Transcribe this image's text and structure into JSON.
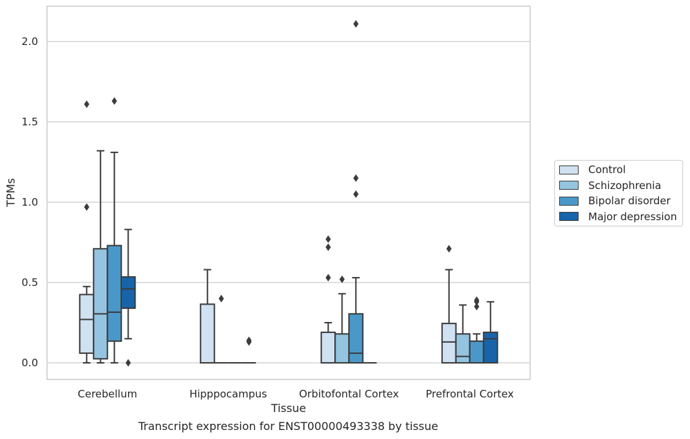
{
  "chart_data": {
    "type": "box",
    "ylabel": "TPMs",
    "xlabel": "Tissue",
    "caption": "Transcript expression for ENST00000493338 by tissue",
    "ylim": [
      -0.1,
      2.22
    ],
    "yticks": [
      0.0,
      0.5,
      1.0,
      1.5,
      2.0
    ],
    "ytick_labels": [
      "0.0",
      "0.5",
      "1.0",
      "1.5",
      "2.0"
    ],
    "grid": "horizontal",
    "legend_position": "right",
    "categories": [
      "Cerebellum",
      "Hipppocampus",
      "Orbitofontal Cortex",
      "Prefrontal Cortex"
    ],
    "series": [
      {
        "name": "Control",
        "color": "#d0e1f2",
        "boxes": [
          {
            "q1": 0.06,
            "median": 0.27,
            "q3": 0.425,
            "whisker_low": 0.0,
            "whisker_high": 0.475,
            "outliers": [
              0.97,
              1.61
            ]
          },
          {
            "q1": 0.0,
            "median": 0.0,
            "q3": 0.365,
            "whisker_low": 0.0,
            "whisker_high": 0.58,
            "outliers": []
          },
          {
            "q1": 0.0,
            "median": 0.0,
            "q3": 0.19,
            "whisker_low": 0.0,
            "whisker_high": 0.25,
            "outliers": [
              0.53,
              0.72,
              0.77
            ]
          },
          {
            "q1": 0.0,
            "median": 0.13,
            "q3": 0.245,
            "whisker_low": 0.0,
            "whisker_high": 0.58,
            "outliers": [
              0.71
            ]
          }
        ]
      },
      {
        "name": "Schizophrenia",
        "color": "#94c4df",
        "boxes": [
          {
            "q1": 0.025,
            "median": 0.305,
            "q3": 0.71,
            "whisker_low": 0.0,
            "whisker_high": 1.32,
            "outliers": []
          },
          {
            "q1": 0.0,
            "median": 0.0,
            "q3": 0.0,
            "whisker_low": 0.0,
            "whisker_high": 0.0,
            "outliers": [
              0.4
            ]
          },
          {
            "q1": 0.0,
            "median": 0.0,
            "q3": 0.18,
            "whisker_low": 0.0,
            "whisker_high": 0.43,
            "outliers": [
              0.52
            ]
          },
          {
            "q1": 0.0,
            "median": 0.04,
            "q3": 0.18,
            "whisker_low": 0.0,
            "whisker_high": 0.36,
            "outliers": []
          }
        ]
      },
      {
        "name": "Bipolar disorder",
        "color": "#4a98c9",
        "boxes": [
          {
            "q1": 0.135,
            "median": 0.315,
            "q3": 0.73,
            "whisker_low": 0.0,
            "whisker_high": 1.31,
            "outliers": [
              1.63
            ]
          },
          {
            "q1": 0.0,
            "median": 0.0,
            "q3": 0.0,
            "whisker_low": 0.0,
            "whisker_high": 0.0,
            "outliers": []
          },
          {
            "q1": 0.0,
            "median": 0.06,
            "q3": 0.305,
            "whisker_low": 0.0,
            "whisker_high": 0.53,
            "outliers": [
              1.05,
              1.15,
              2.11
            ]
          },
          {
            "q1": 0.0,
            "median": 0.0,
            "q3": 0.135,
            "whisker_low": 0.0,
            "whisker_high": 0.18,
            "outliers": [
              0.35,
              0.38,
              0.39
            ]
          }
        ]
      },
      {
        "name": "Major depression",
        "color": "#1764ab",
        "boxes": [
          {
            "q1": 0.34,
            "median": 0.46,
            "q3": 0.535,
            "whisker_low": 0.15,
            "whisker_high": 0.83,
            "outliers": [
              0.0
            ]
          },
          {
            "q1": 0.0,
            "median": 0.0,
            "q3": 0.0,
            "whisker_low": 0.0,
            "whisker_high": 0.0,
            "outliers": [
              0.13,
              0.14
            ]
          },
          {
            "q1": 0.0,
            "median": 0.0,
            "q3": 0.0,
            "whisker_low": 0.0,
            "whisker_high": 0.0,
            "outliers": []
          },
          {
            "q1": 0.0,
            "median": 0.15,
            "q3": 0.19,
            "whisker_low": 0.0,
            "whisker_high": 0.38,
            "outliers": []
          }
        ]
      }
    ]
  }
}
